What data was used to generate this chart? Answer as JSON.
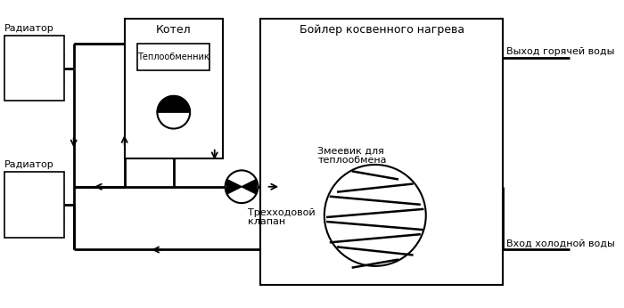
{
  "bg_color": "#ffffff",
  "line_color": "#000000",
  "radiator_label_1": "Радиатор",
  "radiator_label_2": "Радиатор",
  "boiler_label": "Котел",
  "heat_exchanger_label": "Теплообменник",
  "boiler_indirect_label": "Бойлер косвенного нагрева",
  "hot_water_label": "Выход горячей воды",
  "cold_water_label": "Вход холодной воды",
  "three_way_label_1": "Трехходовой",
  "three_way_label_2": "клапан",
  "coil_label_1": "Змеевик для",
  "coil_label_2": "теплообмена"
}
